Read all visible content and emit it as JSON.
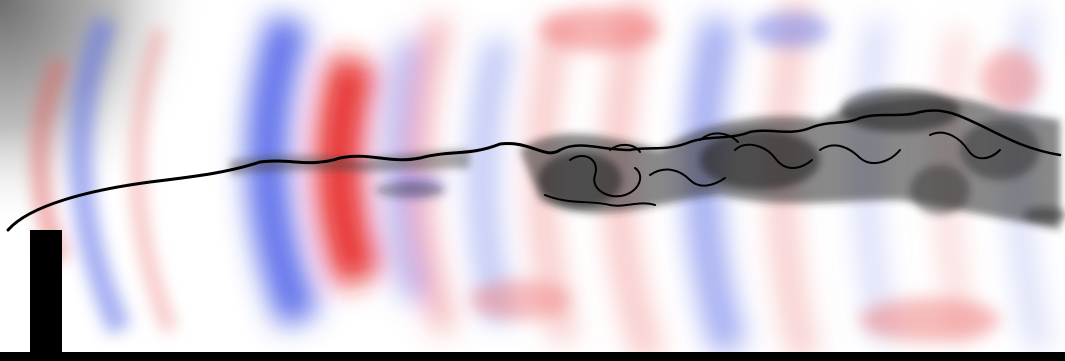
{
  "visualization": {
    "kind": "flow-field-snapshot",
    "colors": {
      "background": "#ffffff",
      "positive": "#e02020",
      "negative": "#2a3fe0",
      "shear_layer": "#000000",
      "wall": "#000000",
      "corner_shading": "#8c8c8c"
    }
  }
}
